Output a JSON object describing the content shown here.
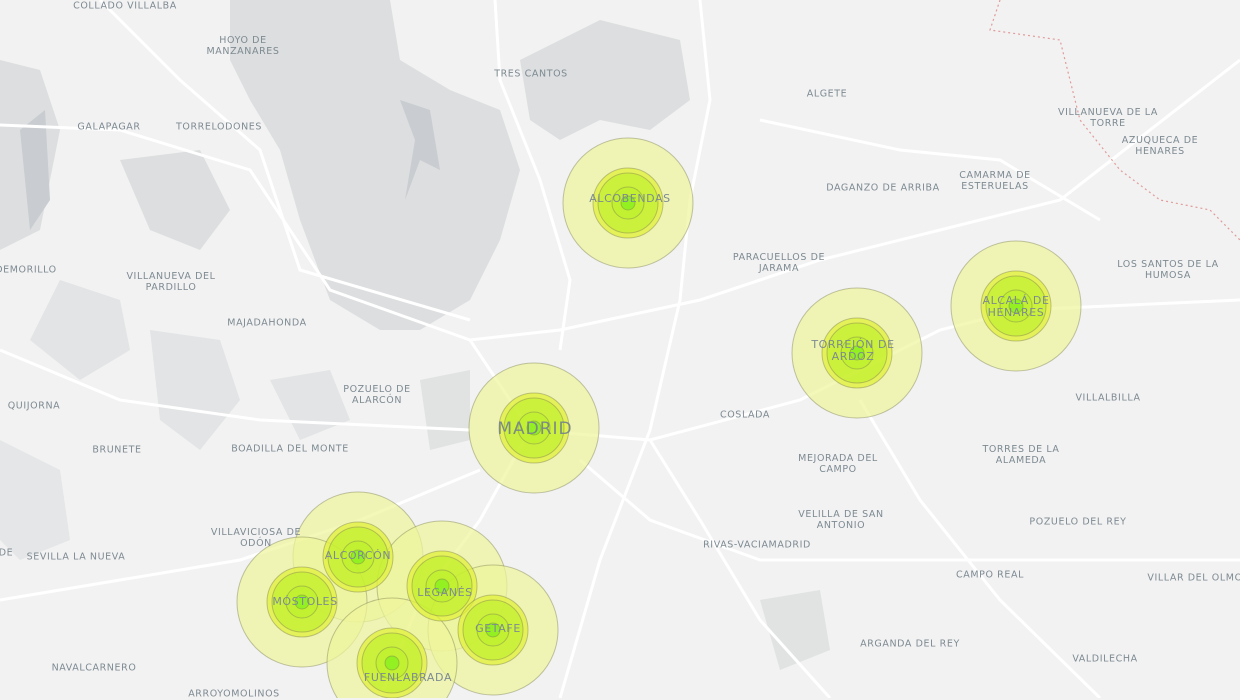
{
  "map": {
    "base_style": "light-gray",
    "marker_colors": {
      "outer": "#eef59a",
      "ring": "#e2f03a",
      "inner": "#b8f028",
      "core": "#8ef020",
      "stroke": "#7c8050"
    },
    "labels": {
      "collado_villalba": "Collado Villalba",
      "hoyo": "Hoyo de Manzanares",
      "tres_cantos": "Tres Cantos",
      "algete": "Algete",
      "villanueva_torre": "Villanueva de la Torre",
      "galapagar": "Galapagar",
      "torrelodones": "Torrelodones",
      "azuqueca": "Azuqueca de Henares",
      "camarma": "Camarma de Esteruelas",
      "daganzo": "Daganzo de Arriba",
      "alcobendas": "Alcobendas",
      "paracuellos": "Paracuellos de Jarama",
      "santos_humosa": "Los Santos de la Humosa",
      "demorillo": "Demorillo",
      "villanueva_pardillo": "Villanueva del Pardillo",
      "alcala": "Alcalá de Henares",
      "majadahonda": "Majadahonda",
      "torrejon": "Torrejón de Ardoz",
      "pozuelo": "Pozuelo de Alarcón",
      "quijorna": "Quijorna",
      "villalbilla": "Villalbilla",
      "coslada": "Coslada",
      "madrid": "Madrid",
      "brunete": "Brunete",
      "boadilla": "Boadilla del Monte",
      "torres_alameda": "Torres de la Alameda",
      "mejorada": "Mejorada del Campo",
      "velilla": "Velilla de San Antonio",
      "villaviciosa": "Villaviciosa de Odón",
      "pozuelo_rey": "Pozuelo del Rey",
      "alcorcon": "Alcorcón",
      "sevilla_nueva": "Sevilla la Nueva",
      "rivas": "Rivas-Vaciamadrid",
      "leganes": "Leganés",
      "campo_real": "Campo Real",
      "villar_olmo": "Villar del Olmo",
      "mostoles": "Móstoles",
      "getafe": "Getafe",
      "arganda": "Arganda del Rey",
      "navalcarnero": "Navalcarnero",
      "valdilecha": "Valdilecha",
      "fuenlabrada": "Fuenlabrada",
      "arroyomolinos": "Arroyomolinos",
      "de": "de"
    }
  }
}
